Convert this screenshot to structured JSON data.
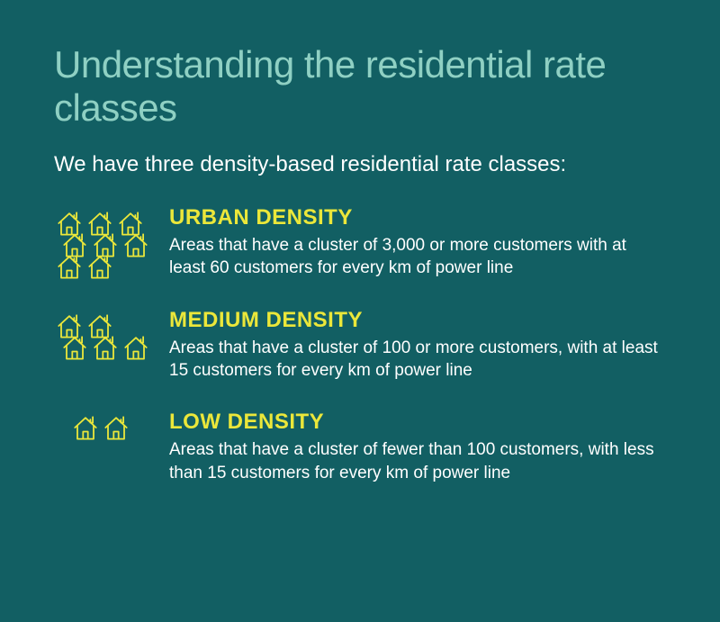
{
  "colors": {
    "background": "#125f63",
    "title": "#8fd0c3",
    "body_text": "#ffffff",
    "accent": "#ebe73a",
    "icon_stroke": "#ebe73a"
  },
  "typography": {
    "title_fontsize": 42,
    "intro_fontsize": 24,
    "section_title_fontsize": 24,
    "section_desc_fontsize": 19
  },
  "title": "Understanding the residential rate classes",
  "intro": "We have three density-based residential rate classes:",
  "sections": [
    {
      "id": "urban",
      "icon_count": 8,
      "icon_rows": [
        3,
        3,
        2
      ],
      "title": "URBAN DENSITY",
      "description": "Areas that have a cluster of 3,000 or more customers with at least 60 customers for every km of power line"
    },
    {
      "id": "medium",
      "icon_count": 5,
      "icon_rows": [
        2,
        3
      ],
      "title": "MEDIUM DENSITY",
      "description": "Areas that have a cluster of 100 or more customers, with at least 15 customers for every km of power line"
    },
    {
      "id": "low",
      "icon_count": 2,
      "icon_rows": [
        2
      ],
      "title": "LOW DENSITY",
      "description": "Areas that have a cluster of fewer than 100 customers, with less than 15 customers for every km of power line"
    }
  ]
}
